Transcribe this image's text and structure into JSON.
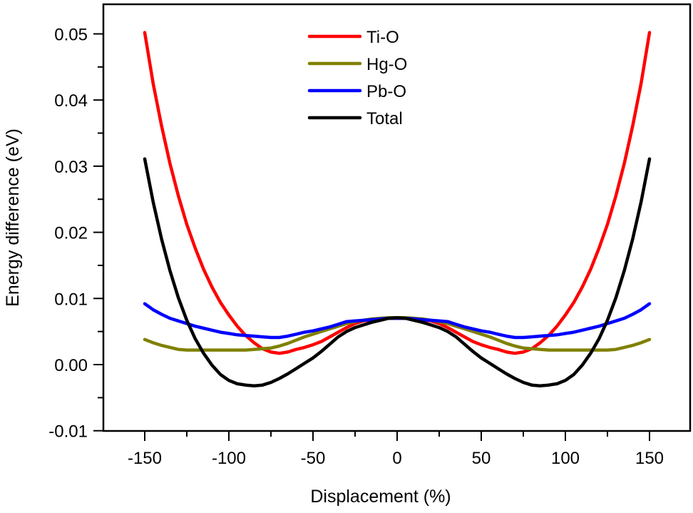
{
  "chart_data": {
    "type": "line",
    "title": "",
    "xlabel": "Displacement (%)",
    "ylabel": "Energy difference (eV)",
    "xlim": [
      -175,
      175
    ],
    "ylim": [
      -0.01,
      0.055
    ],
    "xticks": [
      -150,
      -100,
      -50,
      0,
      50,
      100,
      150
    ],
    "xtick_labels": [
      "-150",
      "-100",
      "-50",
      "0",
      "50",
      "100",
      "150"
    ],
    "yticks": [
      -0.01,
      0.0,
      0.01,
      0.02,
      0.03,
      0.04,
      0.05
    ],
    "ytick_labels": [
      "-0.01",
      "0.00",
      "0.01",
      "0.02",
      "0.03",
      "0.04",
      "0.05"
    ],
    "grid": false,
    "legend_position": "top-center",
    "series": [
      {
        "name": "Ti-O",
        "color": "#ff0000",
        "x": [
          -150,
          -145,
          -140,
          -135,
          -130,
          -125,
          -120,
          -115,
          -110,
          -105,
          -100,
          -95,
          -90,
          -85,
          -80,
          -75,
          -70,
          -65,
          -60,
          -55,
          -50,
          -45,
          -40,
          -35,
          -30,
          -25,
          -20,
          -15,
          -10,
          -5,
          0,
          5,
          10,
          15,
          20,
          25,
          30,
          35,
          40,
          45,
          50,
          55,
          60,
          65,
          70,
          75,
          80,
          85,
          90,
          95,
          100,
          105,
          110,
          115,
          120,
          125,
          130,
          135,
          140,
          145,
          150
        ],
        "y": [
          0.0502,
          0.0425,
          0.0361,
          0.0304,
          0.0255,
          0.0212,
          0.0176,
          0.0144,
          0.0117,
          0.0094,
          0.0075,
          0.0058,
          0.0044,
          0.0033,
          0.0024,
          0.0019,
          0.0017,
          0.0019,
          0.0023,
          0.0026,
          0.003,
          0.0035,
          0.0042,
          0.0049,
          0.0056,
          0.0062,
          0.0066,
          0.0068,
          0.007,
          0.007,
          0.007,
          0.007,
          0.007,
          0.0068,
          0.0066,
          0.0062,
          0.0056,
          0.0049,
          0.0042,
          0.0035,
          0.003,
          0.0026,
          0.0023,
          0.0019,
          0.0017,
          0.0019,
          0.0024,
          0.0033,
          0.0044,
          0.0058,
          0.0075,
          0.0094,
          0.0117,
          0.0144,
          0.0176,
          0.0212,
          0.0255,
          0.0304,
          0.0361,
          0.0425,
          0.0502
        ]
      },
      {
        "name": "Hg-O",
        "color": "#808000",
        "x": [
          -150,
          -145,
          -140,
          -135,
          -130,
          -125,
          -120,
          -115,
          -110,
          -105,
          -100,
          -95,
          -90,
          -85,
          -80,
          -75,
          -70,
          -65,
          -60,
          -55,
          -50,
          -45,
          -40,
          -35,
          -30,
          -25,
          -20,
          -15,
          -10,
          -5,
          0,
          5,
          10,
          15,
          20,
          25,
          30,
          35,
          40,
          45,
          50,
          55,
          60,
          65,
          70,
          75,
          80,
          85,
          90,
          95,
          100,
          105,
          110,
          115,
          120,
          125,
          130,
          135,
          140,
          145,
          150
        ],
        "y": [
          0.0038,
          0.0033,
          0.0029,
          0.0026,
          0.0023,
          0.0022,
          0.0022,
          0.0022,
          0.0022,
          0.0022,
          0.0022,
          0.0022,
          0.0022,
          0.0023,
          0.0024,
          0.0025,
          0.0028,
          0.0032,
          0.0037,
          0.0042,
          0.0046,
          0.005,
          0.0054,
          0.0058,
          0.0062,
          0.0065,
          0.0067,
          0.0069,
          0.007,
          0.0071,
          0.0071,
          0.0071,
          0.007,
          0.0069,
          0.0067,
          0.0065,
          0.0062,
          0.0058,
          0.0054,
          0.005,
          0.0046,
          0.0042,
          0.0037,
          0.0032,
          0.0028,
          0.0025,
          0.0024,
          0.0023,
          0.0022,
          0.0022,
          0.0022,
          0.0022,
          0.0022,
          0.0022,
          0.0022,
          0.0022,
          0.0023,
          0.0026,
          0.0029,
          0.0033,
          0.0038
        ]
      },
      {
        "name": "Pb-O",
        "color": "#0000ff",
        "x": [
          -150,
          -145,
          -140,
          -135,
          -130,
          -125,
          -120,
          -115,
          -110,
          -105,
          -100,
          -95,
          -90,
          -85,
          -80,
          -75,
          -70,
          -65,
          -60,
          -55,
          -50,
          -45,
          -40,
          -35,
          -30,
          -25,
          -20,
          -15,
          -10,
          -5,
          0,
          5,
          10,
          15,
          20,
          25,
          30,
          35,
          40,
          45,
          50,
          55,
          60,
          65,
          70,
          75,
          80,
          85,
          90,
          95,
          100,
          105,
          110,
          115,
          120,
          125,
          130,
          135,
          140,
          145,
          150
        ],
        "y": [
          0.0092,
          0.0083,
          0.0076,
          0.007,
          0.0066,
          0.0062,
          0.0058,
          0.0055,
          0.0052,
          0.0049,
          0.0047,
          0.0045,
          0.0044,
          0.0043,
          0.0042,
          0.0041,
          0.0041,
          0.0043,
          0.0046,
          0.0049,
          0.0051,
          0.0054,
          0.0057,
          0.0061,
          0.0065,
          0.0066,
          0.0067,
          0.0068,
          0.0069,
          0.007,
          0.007,
          0.007,
          0.0069,
          0.0068,
          0.0067,
          0.0066,
          0.0065,
          0.0061,
          0.0057,
          0.0054,
          0.0051,
          0.0049,
          0.0046,
          0.0043,
          0.0041,
          0.0041,
          0.0042,
          0.0043,
          0.0044,
          0.0045,
          0.0047,
          0.0049,
          0.0052,
          0.0055,
          0.0058,
          0.0062,
          0.0066,
          0.007,
          0.0076,
          0.0083,
          0.0092
        ]
      },
      {
        "name": "Total",
        "color": "#000000",
        "x": [
          -150,
          -145,
          -140,
          -135,
          -130,
          -125,
          -120,
          -115,
          -110,
          -105,
          -100,
          -95,
          -90,
          -85,
          -80,
          -75,
          -70,
          -65,
          -60,
          -55,
          -50,
          -45,
          -40,
          -35,
          -30,
          -25,
          -20,
          -15,
          -10,
          -5,
          0,
          5,
          10,
          15,
          20,
          25,
          30,
          35,
          40,
          45,
          50,
          55,
          60,
          65,
          70,
          75,
          80,
          85,
          90,
          95,
          100,
          105,
          110,
          115,
          120,
          125,
          130,
          135,
          140,
          145,
          150
        ],
        "y": [
          0.0311,
          0.0246,
          0.019,
          0.0142,
          0.0101,
          0.0067,
          0.0039,
          0.0017,
          -0.0001,
          -0.0015,
          -0.0024,
          -0.0029,
          -0.0031,
          -0.0032,
          -0.0031,
          -0.0027,
          -0.0021,
          -0.0014,
          -0.0006,
          0.0002,
          0.001,
          0.002,
          0.0031,
          0.0042,
          0.005,
          0.0056,
          0.006,
          0.0064,
          0.0067,
          0.007,
          0.0071,
          0.007,
          0.0067,
          0.0064,
          0.006,
          0.0056,
          0.005,
          0.0042,
          0.0031,
          0.002,
          0.001,
          0.0002,
          -0.0006,
          -0.0014,
          -0.0021,
          -0.0027,
          -0.0031,
          -0.0032,
          -0.0031,
          -0.0029,
          -0.0024,
          -0.0015,
          -0.0001,
          0.0017,
          0.0039,
          0.0067,
          0.0101,
          0.0142,
          0.019,
          0.0246,
          0.0311
        ]
      }
    ]
  }
}
